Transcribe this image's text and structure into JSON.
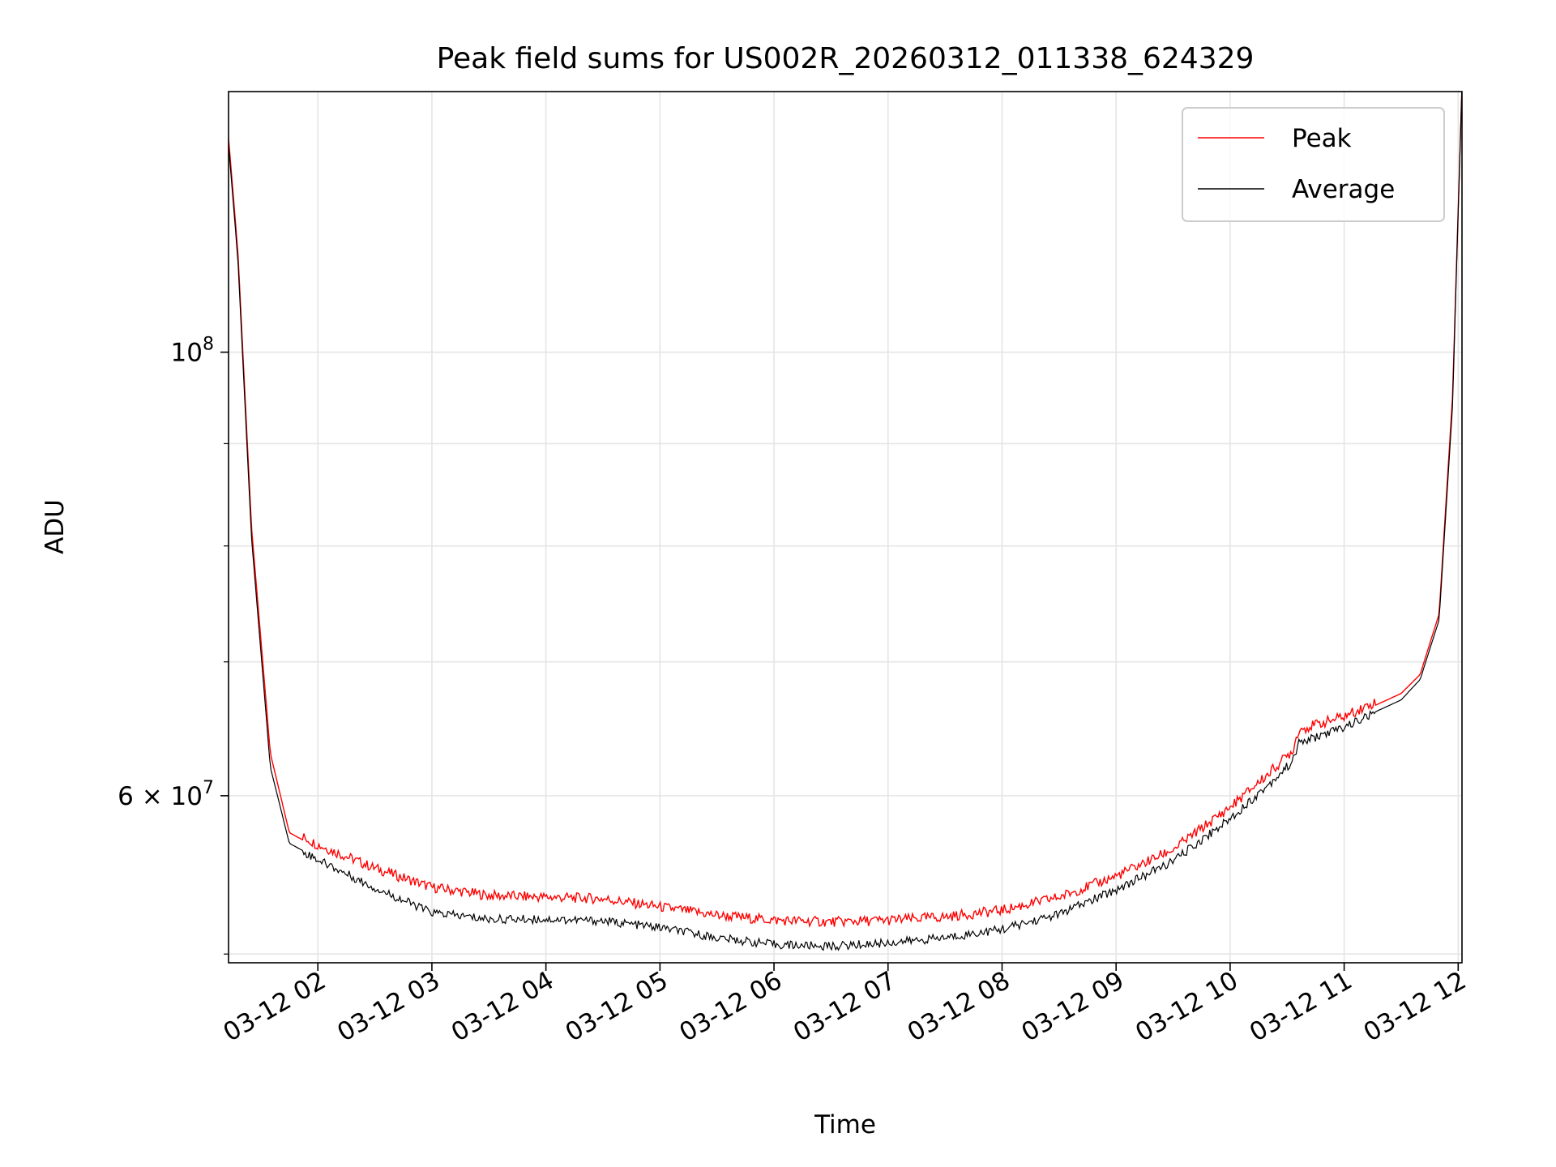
{
  "chart_data": {
    "type": "line",
    "title": "Peak field sums for US002R_20260312_011338_624329",
    "xlabel": "Time",
    "ylabel": "ADU",
    "x_scale": "time",
    "y_scale": "log",
    "xlim": [
      "2026-03-12 01:13",
      "2026-03-12 12:02"
    ],
    "ylim": [
      49500000,
      135000000
    ],
    "x_ticks": [
      "03-12 02",
      "03-12 03",
      "03-12 04",
      "03-12 05",
      "03-12 06",
      "03-12 07",
      "03-12 08",
      "03-12 09",
      "03-12 10",
      "03-12 11",
      "03-12 12"
    ],
    "y_ticks": [
      {
        "value": 60000000,
        "label": "6 × 10",
        "sup": "7"
      },
      {
        "value": 100000000,
        "label": "10",
        "sup": "8"
      }
    ],
    "y_minor_ticks": [
      50000000,
      70000000,
      80000000,
      90000000
    ],
    "grid": true,
    "legend": "top-right",
    "x": [
      "2026-03-12 01:13",
      "2026-03-12 01:18",
      "2026-03-12 01:25",
      "2026-03-12 01:35",
      "2026-03-12 01:45",
      "2026-03-12 02:00",
      "2026-03-12 02:30",
      "2026-03-12 03:00",
      "2026-03-12 03:30",
      "2026-03-12 04:00",
      "2026-03-12 04:30",
      "2026-03-12 05:00",
      "2026-03-12 05:30",
      "2026-03-12 06:00",
      "2026-03-12 06:30",
      "2026-03-12 07:00",
      "2026-03-12 07:30",
      "2026-03-12 08:00",
      "2026-03-12 08:30",
      "2026-03-12 09:00",
      "2026-03-12 09:30",
      "2026-03-12 10:00",
      "2026-03-12 10:20",
      "2026-03-12 10:33",
      "2026-03-12 10:36",
      "2026-03-12 11:00",
      "2026-03-12 11:30",
      "2026-03-12 11:40",
      "2026-03-12 11:50",
      "2026-03-12 11:57",
      "2026-03-12 12:02"
    ],
    "series": [
      {
        "name": "Peak",
        "color": "#ff0000",
        "values": [
          128000000,
          112000000,
          82000000,
          63000000,
          57500000,
          56500000,
          55000000,
          53800000,
          53300000,
          53200000,
          53100000,
          52600000,
          52100000,
          51800000,
          51700000,
          51800000,
          52000000,
          52400000,
          53200000,
          54500000,
          56200000,
          59000000,
          61300000,
          63000000,
          64500000,
          65500000,
          67500000,
          69000000,
          74000000,
          95000000,
          136000000
        ]
      },
      {
        "name": "Average",
        "color": "#000000",
        "values": [
          127000000,
          111000000,
          81000000,
          62000000,
          56800000,
          55800000,
          54000000,
          52500000,
          52100000,
          52100000,
          52000000,
          51600000,
          51000000,
          50600000,
          50500000,
          50700000,
          51000000,
          51500000,
          52400000,
          53900000,
          55700000,
          58500000,
          60800000,
          62500000,
          63800000,
          65000000,
          67000000,
          68600000,
          73500000,
          94000000,
          136000000
        ]
      }
    ]
  }
}
